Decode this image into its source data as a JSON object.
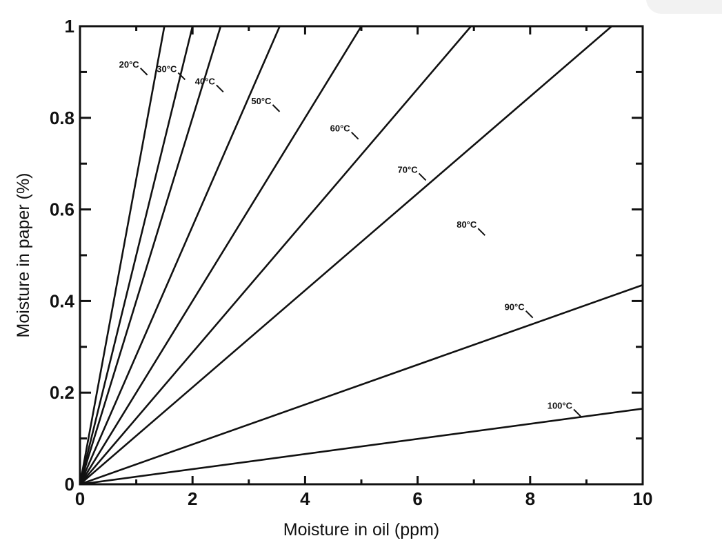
{
  "chart_data": {
    "type": "line",
    "title": "",
    "xlabel": "Moisture in oil (ppm)",
    "ylabel": "Moisture in paper (%)",
    "xlim": [
      0,
      10
    ],
    "ylim": [
      0,
      1
    ],
    "x_ticks": [
      0,
      2,
      4,
      6,
      8,
      10
    ],
    "x_tick_labels": [
      "0",
      "2",
      "4",
      "6",
      "8",
      "10"
    ],
    "y_ticks": [
      0,
      0.2,
      0.4,
      0.6,
      0.8,
      1
    ],
    "y_tick_labels": [
      "0",
      "0.2",
      "0.4",
      "0.6",
      "0.8",
      "1"
    ],
    "x_minor_step": 1,
    "y_minor_step": 0.1,
    "grid": false,
    "legend": "none",
    "series": [
      {
        "name": "20°C",
        "points": [
          [
            0,
            0
          ],
          [
            1.5,
            1
          ]
        ],
        "label_at": [
          1.05,
          0.91
        ]
      },
      {
        "name": "30°C",
        "points": [
          [
            0,
            0
          ],
          [
            2.0,
            1
          ]
        ],
        "label_at": [
          1.72,
          0.9
        ]
      },
      {
        "name": "40°C",
        "points": [
          [
            0,
            0
          ],
          [
            2.5,
            1
          ]
        ],
        "label_at": [
          2.4,
          0.873
        ]
      },
      {
        "name": "50°C",
        "points": [
          [
            0,
            0
          ],
          [
            3.55,
            1
          ]
        ],
        "label_at": [
          3.4,
          0.83
        ]
      },
      {
        "name": "60°C",
        "points": [
          [
            0,
            0
          ],
          [
            5.0,
            1
          ]
        ],
        "label_at": [
          4.8,
          0.77
        ]
      },
      {
        "name": "70°C",
        "points": [
          [
            0,
            0
          ],
          [
            6.95,
            1
          ]
        ],
        "label_at": [
          6.0,
          0.68
        ]
      },
      {
        "name": "80°C",
        "points": [
          [
            0,
            0
          ],
          [
            9.45,
            1
          ]
        ],
        "label_at": [
          7.05,
          0.56
        ]
      },
      {
        "name": "90°C",
        "points": [
          [
            0,
            0
          ],
          [
            10,
            0.435
          ]
        ],
        "label_at": [
          7.9,
          0.38
        ]
      },
      {
        "name": "100°C",
        "points": [
          [
            0,
            0
          ],
          [
            10,
            0.165
          ]
        ],
        "label_at": [
          8.75,
          0.165
        ]
      }
    ]
  }
}
